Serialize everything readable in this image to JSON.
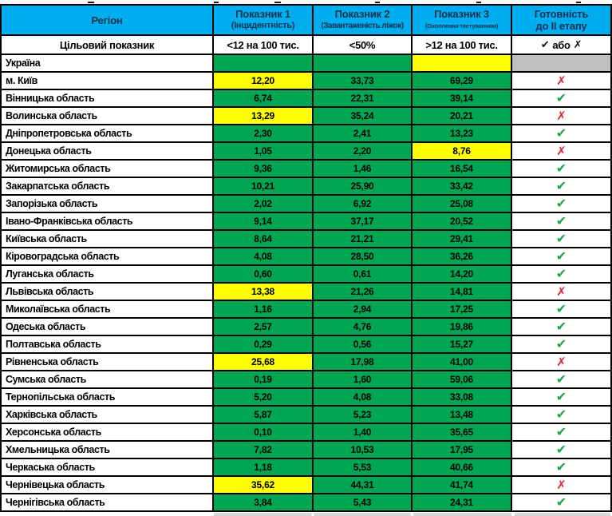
{
  "colors": {
    "header_bg": "#00AEEF",
    "green_cell": "#00A651",
    "yellow_cell": "#FFFF00",
    "gray_cell": "#BFBFBF",
    "check_green": "#1FA24B",
    "x_red": "#E8232D",
    "border": "#000000"
  },
  "marks": {
    "check": "✔",
    "x": "✗"
  },
  "header": {
    "region": "Регіон",
    "col1_title": "Показник 1",
    "col1_sub": "(Інцидентність)",
    "col2_title": "Показник 2",
    "col2_sub": "(Завантаженість ліжок)",
    "col3_title": "Показник 3",
    "col3_sub": "(Охоплення тестуванням)",
    "col4_title": "Готовність",
    "col4_sub": "до II етапу"
  },
  "target_row": {
    "label": "Цільовий показник",
    "v1": "<12 на 100 тис.",
    "v2": "<50%",
    "v3": ">12 на 100 тис.",
    "v4_text": "або"
  },
  "rows": [
    {
      "region": "Україна",
      "v1": "",
      "v2": "",
      "v3": "",
      "c1": "green",
      "c2": "green",
      "c3": "yellow",
      "status": "none"
    },
    {
      "region": "м. Київ",
      "v1": "12,20",
      "v2": "33,73",
      "v3": "69,29",
      "c1": "yellow",
      "c2": "green",
      "c3": "green",
      "status": "x"
    },
    {
      "region": "Вінницька область",
      "v1": "6,74",
      "v2": "22,31",
      "v3": "39,14",
      "c1": "green",
      "c2": "green",
      "c3": "green",
      "status": "check"
    },
    {
      "region": "Волинська область",
      "v1": "13,29",
      "v2": "35,24",
      "v3": "20,21",
      "c1": "yellow",
      "c2": "green",
      "c3": "green",
      "status": "x"
    },
    {
      "region": "Дніпропетровська область",
      "v1": "2,30",
      "v2": "2,41",
      "v3": "13,23",
      "c1": "green",
      "c2": "green",
      "c3": "green",
      "status": "check"
    },
    {
      "region": "Донецька область",
      "v1": "1,05",
      "v2": "2,20",
      "v3": "8,76",
      "c1": "green",
      "c2": "green",
      "c3": "yellow",
      "status": "x"
    },
    {
      "region": "Житомирська область",
      "v1": "9,36",
      "v2": "1,46",
      "v3": "16,54",
      "c1": "green",
      "c2": "green",
      "c3": "green",
      "status": "check"
    },
    {
      "region": "Закарпатська область",
      "v1": "10,21",
      "v2": "25,90",
      "v3": "33,42",
      "c1": "green",
      "c2": "green",
      "c3": "green",
      "status": "check"
    },
    {
      "region": "Запорізька область",
      "v1": "2,02",
      "v2": "6,92",
      "v3": "25,08",
      "c1": "green",
      "c2": "green",
      "c3": "green",
      "status": "check"
    },
    {
      "region": "Івано-Франківська область",
      "v1": "9,14",
      "v2": "37,17",
      "v3": "20,52",
      "c1": "green",
      "c2": "green",
      "c3": "green",
      "status": "check"
    },
    {
      "region": "Київська область",
      "v1": "8,64",
      "v2": "21,21",
      "v3": "29,41",
      "c1": "green",
      "c2": "green",
      "c3": "green",
      "status": "check"
    },
    {
      "region": "Кіровоградська область",
      "v1": "4,08",
      "v2": "28,50",
      "v3": "36,26",
      "c1": "green",
      "c2": "green",
      "c3": "green",
      "status": "check"
    },
    {
      "region": "Луганська область",
      "v1": "0,60",
      "v2": "0,61",
      "v3": "14,20",
      "c1": "green",
      "c2": "green",
      "c3": "green",
      "status": "check"
    },
    {
      "region": "Львівська область",
      "v1": "13,38",
      "v2": "21,26",
      "v3": "14,81",
      "c1": "yellow",
      "c2": "green",
      "c3": "green",
      "status": "x"
    },
    {
      "region": "Миколаївська область",
      "v1": "1,16",
      "v2": "2,94",
      "v3": "17,25",
      "c1": "green",
      "c2": "green",
      "c3": "green",
      "status": "check"
    },
    {
      "region": "Одеська область",
      "v1": "2,57",
      "v2": "4,76",
      "v3": "19,86",
      "c1": "green",
      "c2": "green",
      "c3": "green",
      "status": "check"
    },
    {
      "region": "Полтавська область",
      "v1": "0,29",
      "v2": "0,56",
      "v3": "15,27",
      "c1": "green",
      "c2": "green",
      "c3": "green",
      "status": "check"
    },
    {
      "region": "Рівненська область",
      "v1": "25,68",
      "v2": "17,98",
      "v3": "41,00",
      "c1": "yellow",
      "c2": "green",
      "c3": "green",
      "status": "x"
    },
    {
      "region": "Сумська область",
      "v1": "0,19",
      "v2": "1,60",
      "v3": "59,06",
      "c1": "green",
      "c2": "green",
      "c3": "green",
      "status": "check"
    },
    {
      "region": "Тернопільська область",
      "v1": "5,20",
      "v2": "4,08",
      "v3": "33,08",
      "c1": "green",
      "c2": "green",
      "c3": "green",
      "status": "check"
    },
    {
      "region": "Харківська область",
      "v1": "5,87",
      "v2": "5,23",
      "v3": "13,48",
      "c1": "green",
      "c2": "green",
      "c3": "green",
      "status": "check"
    },
    {
      "region": "Херсонська область",
      "v1": "0,10",
      "v2": "1,40",
      "v3": "35,65",
      "c1": "green",
      "c2": "green",
      "c3": "green",
      "status": "check"
    },
    {
      "region": "Хмельницька область",
      "v1": "7,82",
      "v2": "10,53",
      "v3": "17,95",
      "c1": "green",
      "c2": "green",
      "c3": "green",
      "status": "check"
    },
    {
      "region": "Черкаська область",
      "v1": "1,18",
      "v2": "5,53",
      "v3": "40,66",
      "c1": "green",
      "c2": "green",
      "c3": "green",
      "status": "check"
    },
    {
      "region": "Чернівецька область",
      "v1": "35,62",
      "v2": "44,31",
      "v3": "41,74",
      "c1": "yellow",
      "c2": "green",
      "c3": "green",
      "status": "x"
    },
    {
      "region": "Чернігівська область",
      "v1": "3,84",
      "v2": "5,43",
      "v3": "24,31",
      "c1": "green",
      "c2": "green",
      "c3": "green",
      "status": "check"
    }
  ],
  "chart_data": {
    "type": "table",
    "title": "Готовність регіонів до II етапу",
    "columns": [
      "Регіон",
      "Показник 1 (Інцидентність)",
      "Показник 2 (Завантаженість ліжок)",
      "Показник 3 (Охоплення тестуванням)",
      "Готовність до II етапу"
    ],
    "target_values": [
      "Цільовий показник",
      "<12 на 100 тис.",
      "<50%",
      ">12 на 100 тис.",
      "✔ або ✗"
    ],
    "rows": [
      [
        "Україна",
        null,
        null,
        null,
        ""
      ],
      [
        "м. Київ",
        12.2,
        33.73,
        69.29,
        "✗"
      ],
      [
        "Вінницька область",
        6.74,
        22.31,
        39.14,
        "✔"
      ],
      [
        "Волинська область",
        13.29,
        35.24,
        20.21,
        "✗"
      ],
      [
        "Дніпропетровська область",
        2.3,
        2.41,
        13.23,
        "✔"
      ],
      [
        "Донецька область",
        1.05,
        2.2,
        8.76,
        "✗"
      ],
      [
        "Житомирська область",
        9.36,
        1.46,
        16.54,
        "✔"
      ],
      [
        "Закарпатська область",
        10.21,
        25.9,
        33.42,
        "✔"
      ],
      [
        "Запорізька область",
        2.02,
        6.92,
        25.08,
        "✔"
      ],
      [
        "Івано-Франківська область",
        9.14,
        37.17,
        20.52,
        "✔"
      ],
      [
        "Київська область",
        8.64,
        21.21,
        29.41,
        "✔"
      ],
      [
        "Кіровоградська область",
        4.08,
        28.5,
        36.26,
        "✔"
      ],
      [
        "Луганська область",
        0.6,
        0.61,
        14.2,
        "✔"
      ],
      [
        "Львівська область",
        13.38,
        21.26,
        14.81,
        "✗"
      ],
      [
        "Миколаївська область",
        1.16,
        2.94,
        17.25,
        "✔"
      ],
      [
        "Одеська область",
        2.57,
        4.76,
        19.86,
        "✔"
      ],
      [
        "Полтавська область",
        0.29,
        0.56,
        15.27,
        "✔"
      ],
      [
        "Рівненська область",
        25.68,
        17.98,
        41.0,
        "✗"
      ],
      [
        "Сумська область",
        0.19,
        1.6,
        59.06,
        "✔"
      ],
      [
        "Тернопільська область",
        5.2,
        4.08,
        33.08,
        "✔"
      ],
      [
        "Харківська область",
        5.87,
        5.23,
        13.48,
        "✔"
      ],
      [
        "Херсонська область",
        0.1,
        1.4,
        35.65,
        "✔"
      ],
      [
        "Хмельницька область",
        7.82,
        10.53,
        17.95,
        "✔"
      ],
      [
        "Черкаська область",
        1.18,
        5.53,
        40.66,
        "✔"
      ],
      [
        "Чернівецька область",
        35.62,
        44.31,
        41.74,
        "✗"
      ],
      [
        "Чернігівська область",
        3.84,
        5.43,
        24.31,
        "✔"
      ]
    ],
    "highlighted_yellow_cells": [
      [
        "м. Київ",
        "Показник 1"
      ],
      [
        "Волинська область",
        "Показник 1"
      ],
      [
        "Донецька область",
        "Показник 3"
      ],
      [
        "Львівська область",
        "Показник 1"
      ],
      [
        "Рівненська область",
        "Показник 1"
      ],
      [
        "Чернівецька область",
        "Показник 1"
      ],
      [
        "Україна",
        "Показник 3"
      ]
    ]
  }
}
